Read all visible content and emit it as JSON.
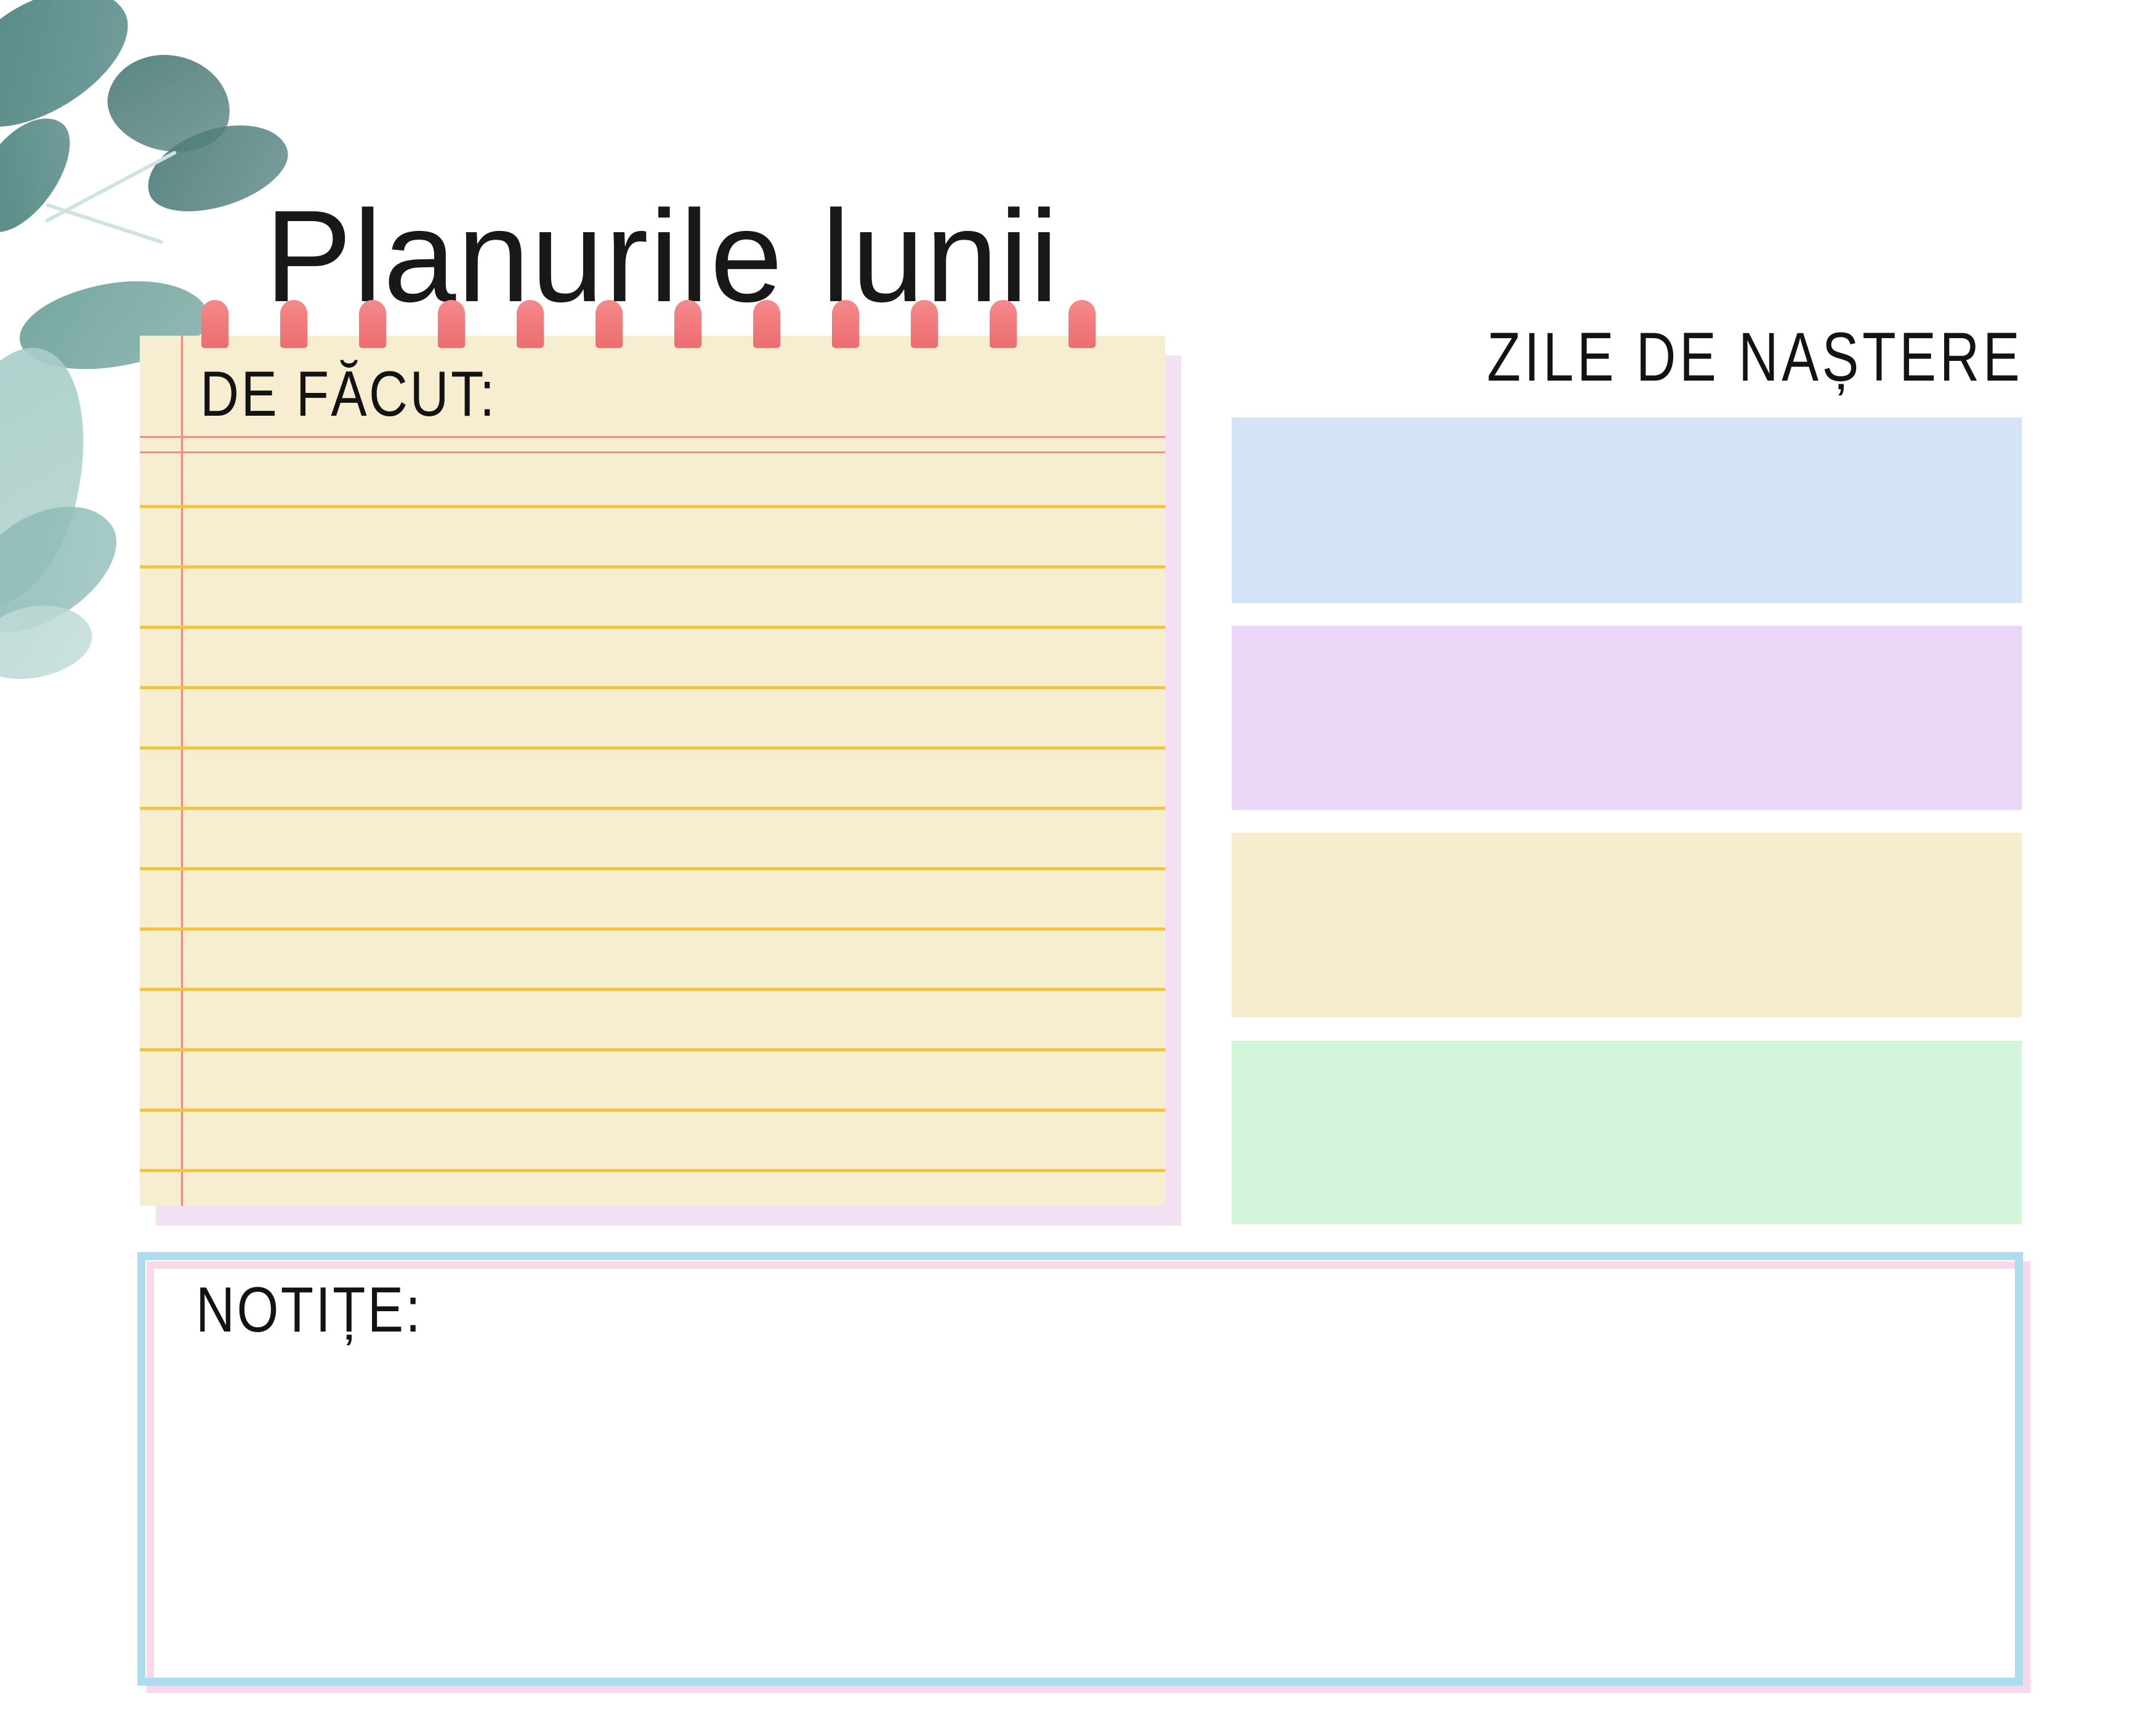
{
  "page": {
    "background": "#ffffff"
  },
  "title": {
    "text": "Planurile lunii"
  },
  "todo_panel": {
    "label": "DE FĂCUT:",
    "paper_color": "#f7eed2",
    "shadow_color": "#f3e0f2",
    "ring_color": "#f1797b",
    "ring_count": 12,
    "margin_line_color": "#e4726f",
    "red_line_color": "#f08c8a",
    "yellow_line_color": "#f1c14c",
    "yellow_line_count": 12
  },
  "birthdays_panel": {
    "label": "ZILE DE NAȘTERE",
    "bands": [
      {
        "name": "blue-row",
        "color": "#d5e3f7"
      },
      {
        "name": "purple-row",
        "color": "#ecd6f7"
      },
      {
        "name": "cream-row",
        "color": "#f6ecce"
      },
      {
        "name": "green-row",
        "color": "#d3f6da"
      }
    ]
  },
  "notes_panel": {
    "label": "NOTIȚE:",
    "outer_border_color": "#addcee",
    "inner_border_color": "#f8d9e9"
  },
  "decoration": {
    "leaf_colors": [
      "#48807c",
      "#517f7c",
      "#6fa39b",
      "#a9cdc8",
      "#8fbcb6",
      "#bcd9d5"
    ]
  }
}
